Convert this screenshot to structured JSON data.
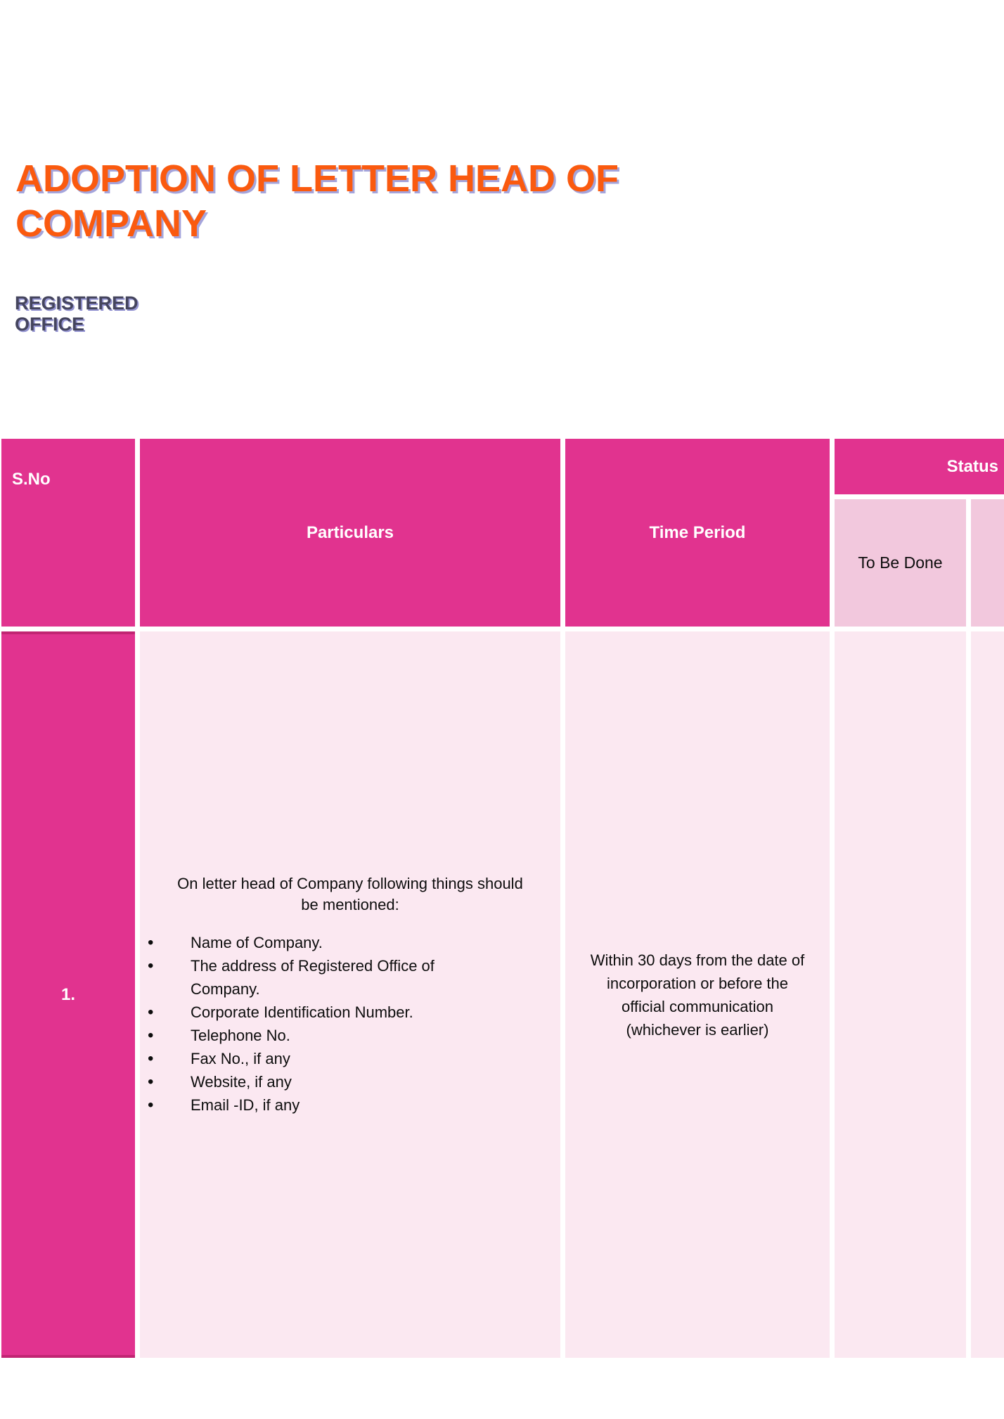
{
  "document": {
    "title": "ADOPTION OF LETTER HEAD OF COMPANY",
    "subtitle": "REGISTERED OFFICE"
  },
  "colors": {
    "title_orange": "#fa5a0f",
    "title_shadow_periwinkle": "#a5a5dc",
    "subtitle_slate": "#45455e",
    "subtitle_shadow_periwinkle": "#9595d2",
    "header_magenta": "#e1338f",
    "serial_cell_border_dark_magenta": "#c12573",
    "status_subheader_pink": "#f2c8dd",
    "data_row_light_pink": "#fbe8f1"
  },
  "table": {
    "headers": {
      "sno": "S.No",
      "particulars": "Particulars",
      "time_period": "Time Period",
      "status": "Status",
      "status_sub": "To Be Done"
    },
    "rows": [
      {
        "sno": "1.",
        "particulars_intro": "On letter head of Company following things should be mentioned:",
        "bullet_glyph": "•",
        "particulars_items": [
          "Name of Company.",
          "The address of Registered Office of Company.",
          "Corporate Identification Number.",
          "Telephone No.",
          "Fax No., if any",
          "Website, if any",
          "Email -ID, if any"
        ],
        "time_period": "Within 30 days from the date of incorporation or before the official communication (whichever is earlier)"
      }
    ]
  }
}
